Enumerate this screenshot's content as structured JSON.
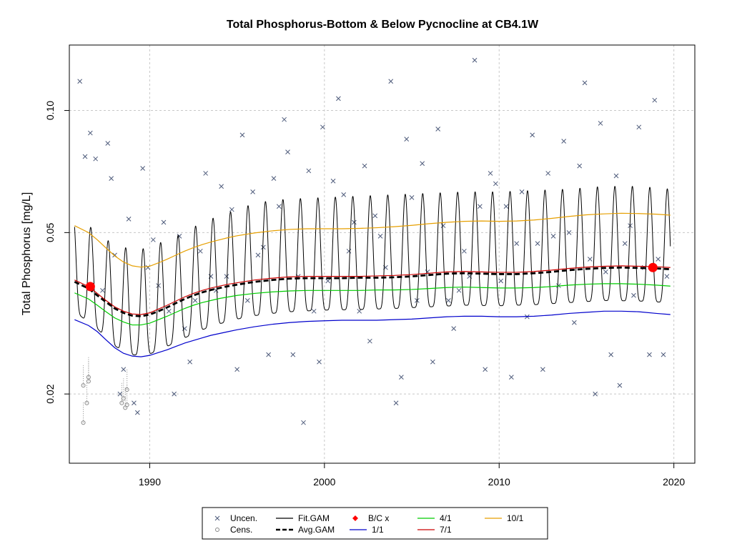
{
  "chart_data": {
    "type": "line",
    "title": "Total Phosphorus-Bottom & Below Pycnocline at CB4.1W",
    "xlabel": "",
    "ylabel": "Total Phosphorus [mg/L]",
    "y_scale": "log",
    "xlim": [
      1985.4,
      2021.2
    ],
    "ylim": [
      0.0135,
      0.145
    ],
    "x_ticks": [
      1990,
      2000,
      2010,
      2020
    ],
    "x_tick_labels": [
      "1990",
      "2000",
      "2010",
      "2020"
    ],
    "y_ticks": [
      0.02,
      0.05,
      0.1
    ],
    "y_tick_labels": [
      "0.02",
      "0.05",
      "0.10"
    ],
    "grid": true,
    "legend_position": "bottom",
    "legend": [
      {
        "label": "Uncen.",
        "symbol": "x"
      },
      {
        "label": "Cens.",
        "symbol": "circle"
      },
      {
        "label": "Fit.GAM",
        "symbol": "line"
      },
      {
        "label": "Avg.GAM",
        "symbol": "dashed"
      },
      {
        "label": "B/C x",
        "symbol": "diamond"
      },
      {
        "label": "1/1",
        "symbol": "line"
      },
      {
        "label": "4/1",
        "symbol": "line"
      },
      {
        "label": "7/1",
        "symbol": "line"
      },
      {
        "label": "10/1",
        "symbol": "line"
      }
    ],
    "series_colors": {
      "points": "#4d5a7a",
      "fit_gam": "#000000",
      "avg_gam": "#000000",
      "bc": "#ff0000",
      "jan1": "#0000cc",
      "apr1": "#00cc00",
      "jul1": "#cc0000",
      "oct1": "#e69f00"
    },
    "series": [
      {
        "name": "1/1",
        "key": "jan1",
        "x": [
          1985.7,
          1986.5,
          1987.0,
          1987.5,
          1988.0,
          1988.5,
          1989.0,
          1989.5,
          1990.0,
          1990.5,
          1991.0,
          1991.5,
          1992.0,
          1992.5,
          1993.0,
          1993.5,
          1994.0,
          1994.5,
          1995.0,
          1996.0,
          1997.0,
          1998.0,
          1999.0,
          2000.0,
          2001.0,
          2002.0,
          2003.0,
          2004.0,
          2005.0,
          2006.0,
          2007.0,
          2008.0,
          2009.0,
          2010.0,
          2011.0,
          2012.0,
          2013.0,
          2014.0,
          2015.0,
          2016.0,
          2017.0,
          2018.0,
          2019.0,
          2019.8
        ],
        "y": [
          0.0305,
          0.0295,
          0.0285,
          0.0272,
          0.026,
          0.0252,
          0.0248,
          0.0247,
          0.0249,
          0.0253,
          0.0257,
          0.0262,
          0.0267,
          0.0271,
          0.0275,
          0.0279,
          0.0282,
          0.0285,
          0.0288,
          0.0293,
          0.0297,
          0.03,
          0.0302,
          0.0303,
          0.0304,
          0.0304,
          0.0304,
          0.0305,
          0.0306,
          0.0308,
          0.031,
          0.0311,
          0.0311,
          0.031,
          0.031,
          0.0311,
          0.0313,
          0.0316,
          0.0318,
          0.032,
          0.032,
          0.0319,
          0.0316,
          0.0314
        ]
      },
      {
        "name": "4/1",
        "key": "apr1",
        "x": [
          1985.7,
          1986.5,
          1987.0,
          1987.5,
          1988.0,
          1988.5,
          1989.0,
          1989.5,
          1990.0,
          1990.5,
          1991.0,
          1991.5,
          1992.0,
          1992.5,
          1993.0,
          1993.5,
          1994.0,
          1994.5,
          1995.0,
          1996.0,
          1997.0,
          1998.0,
          1999.0,
          2000.0,
          2001.0,
          2002.0,
          2003.0,
          2004.0,
          2005.0,
          2006.0,
          2007.0,
          2008.0,
          2009.0,
          2010.0,
          2011.0,
          2012.0,
          2013.0,
          2014.0,
          2015.0,
          2016.0,
          2017.0,
          2018.0,
          2019.0,
          2019.8
        ],
        "y": [
          0.0355,
          0.0343,
          0.0331,
          0.0319,
          0.0308,
          0.0301,
          0.0296,
          0.0296,
          0.0299,
          0.0305,
          0.0311,
          0.0318,
          0.0325,
          0.0331,
          0.0336,
          0.034,
          0.0344,
          0.0347,
          0.035,
          0.0354,
          0.0357,
          0.0359,
          0.036,
          0.036,
          0.036,
          0.036,
          0.0361,
          0.0361,
          0.0362,
          0.0364,
          0.0366,
          0.0367,
          0.0366,
          0.0365,
          0.0365,
          0.0366,
          0.0368,
          0.0371,
          0.0373,
          0.0374,
          0.0374,
          0.0373,
          0.0371,
          0.0369
        ]
      },
      {
        "name": "7/1",
        "key": "jul1",
        "x": [
          1985.7,
          1986.5,
          1987.0,
          1987.5,
          1988.0,
          1988.5,
          1989.0,
          1989.5,
          1990.0,
          1990.5,
          1991.0,
          1991.5,
          1992.0,
          1992.5,
          1993.0,
          1993.5,
          1994.0,
          1994.5,
          1995.0,
          1996.0,
          1997.0,
          1998.0,
          1999.0,
          2000.0,
          2001.0,
          2002.0,
          2003.0,
          2004.0,
          2005.0,
          2006.0,
          2007.0,
          2008.0,
          2009.0,
          2010.0,
          2011.0,
          2012.0,
          2013.0,
          2014.0,
          2015.0,
          2016.0,
          2017.0,
          2018.0,
          2019.0,
          2019.8
        ],
        "y": [
          0.0382,
          0.0368,
          0.0354,
          0.034,
          0.0328,
          0.032,
          0.0315,
          0.0314,
          0.0317,
          0.0324,
          0.0331,
          0.0339,
          0.0347,
          0.0354,
          0.036,
          0.0365,
          0.0369,
          0.0373,
          0.0376,
          0.0382,
          0.0386,
          0.0389,
          0.039,
          0.039,
          0.039,
          0.039,
          0.0391,
          0.0392,
          0.0394,
          0.0397,
          0.04,
          0.0401,
          0.04,
          0.0399,
          0.0399,
          0.0401,
          0.0404,
          0.0408,
          0.0411,
          0.0413,
          0.0414,
          0.0413,
          0.0412,
          0.041
        ]
      },
      {
        "name": "10/1",
        "key": "oct1",
        "x": [
          1985.7,
          1986.5,
          1987.0,
          1987.5,
          1988.0,
          1988.5,
          1989.0,
          1989.5,
          1990.0,
          1990.5,
          1991.0,
          1991.5,
          1992.0,
          1992.5,
          1993.0,
          1993.5,
          1994.0,
          1994.5,
          1995.0,
          1996.0,
          1997.0,
          1998.0,
          1999.0,
          2000.0,
          2001.0,
          2002.0,
          2003.0,
          2004.0,
          2005.0,
          2006.0,
          2007.0,
          2008.0,
          2009.0,
          2010.0,
          2011.0,
          2012.0,
          2013.0,
          2014.0,
          2015.0,
          2016.0,
          2017.0,
          2018.0,
          2019.0,
          2019.8
        ],
        "y": [
          0.052,
          0.05,
          0.048,
          0.0458,
          0.0438,
          0.0423,
          0.0414,
          0.0411,
          0.0413,
          0.0421,
          0.043,
          0.044,
          0.045,
          0.0459,
          0.0467,
          0.0474,
          0.048,
          0.0486,
          0.0491,
          0.0499,
          0.0505,
          0.0509,
          0.0511,
          0.0511,
          0.0511,
          0.0512,
          0.0514,
          0.0517,
          0.0521,
          0.0526,
          0.053,
          0.0533,
          0.0534,
          0.0533,
          0.0534,
          0.0537,
          0.0542,
          0.0548,
          0.0553,
          0.0556,
          0.0558,
          0.0557,
          0.0555,
          0.0552
        ]
      },
      {
        "name": "Fit.GAM",
        "key": "fit_gam",
        "x_start": 1985.7,
        "x_end": 2019.8,
        "cycle": "annual",
        "peak_month": 8.5,
        "x": [
          1985.7,
          1986.5,
          1987.0,
          1987.5,
          1988.0,
          1988.5,
          1989.0,
          1989.5,
          1990.0,
          1991.0,
          1992.0,
          1993.0,
          1994.0,
          1995.0,
          1996.0,
          1997.0,
          1998.0,
          2000.0,
          2002.0,
          2004.0,
          2006.0,
          2008.0,
          2010.0,
          2012.0,
          2014.0,
          2016.0,
          2018.0,
          2019.8
        ],
        "y_low": [
          0.032,
          0.03,
          0.029,
          0.0275,
          0.0263,
          0.0255,
          0.025,
          0.0249,
          0.0251,
          0.0262,
          0.0275,
          0.0288,
          0.0298,
          0.0306,
          0.0312,
          0.0316,
          0.0319,
          0.0322,
          0.0323,
          0.0325,
          0.0328,
          0.0331,
          0.033,
          0.0332,
          0.0336,
          0.034,
          0.0339,
          0.0336
        ],
        "y_high": [
          0.055,
          0.052,
          0.05,
          0.048,
          0.047,
          0.046,
          0.0455,
          0.0455,
          0.046,
          0.048,
          0.05,
          0.053,
          0.055,
          0.057,
          0.059,
          0.06,
          0.0605,
          0.061,
          0.0615,
          0.062,
          0.0625,
          0.063,
          0.063,
          0.0635,
          0.064,
          0.065,
          0.065,
          0.064
        ]
      },
      {
        "name": "Avg.GAM",
        "key": "avg_gam",
        "x": [
          1985.7,
          1986.5,
          1987.0,
          1987.5,
          1988.0,
          1988.5,
          1989.0,
          1989.5,
          1990.0,
          1990.5,
          1991.0,
          1991.5,
          1992.0,
          1992.5,
          1993.0,
          1993.5,
          1994.0,
          1994.5,
          1995.0,
          1996.0,
          1997.0,
          1998.0,
          1999.0,
          2000.0,
          2001.0,
          2002.0,
          2003.0,
          2004.0,
          2005.0,
          2006.0,
          2007.0,
          2008.0,
          2009.0,
          2010.0,
          2011.0,
          2012.0,
          2013.0,
          2014.0,
          2015.0,
          2016.0,
          2017.0,
          2018.0,
          2019.0,
          2019.8
        ],
        "y": [
          0.0378,
          0.0364,
          0.035,
          0.0337,
          0.0325,
          0.0317,
          0.0312,
          0.0311,
          0.0314,
          0.032,
          0.0327,
          0.0335,
          0.0343,
          0.035,
          0.0356,
          0.0361,
          0.0365,
          0.0369,
          0.0372,
          0.0378,
          0.0382,
          0.0385,
          0.0386,
          0.0386,
          0.0386,
          0.0387,
          0.0387,
          0.0388,
          0.039,
          0.0393,
          0.0396,
          0.0397,
          0.0396,
          0.0395,
          0.0395,
          0.0397,
          0.04,
          0.0404,
          0.0407,
          0.0409,
          0.041,
          0.0409,
          0.0408,
          0.0406
        ]
      },
      {
        "name": "B/C x",
        "key": "bc",
        "x": [
          1986.6,
          2018.8
        ],
        "y": [
          0.0368,
          0.041
        ]
      }
    ],
    "uncensored_points": [
      [
        1986.0,
        0.118
      ],
      [
        1986.3,
        0.077
      ],
      [
        1986.6,
        0.088
      ],
      [
        1986.9,
        0.076
      ],
      [
        1987.3,
        0.036
      ],
      [
        1987.6,
        0.083
      ],
      [
        1987.8,
        0.068
      ],
      [
        1988.0,
        0.044
      ],
      [
        1988.3,
        0.02
      ],
      [
        1988.5,
        0.023
      ],
      [
        1988.8,
        0.054
      ],
      [
        1989.1,
        0.019
      ],
      [
        1989.3,
        0.018
      ],
      [
        1989.6,
        0.072
      ],
      [
        1989.9,
        0.041
      ],
      [
        1990.2,
        0.048
      ],
      [
        1990.5,
        0.037
      ],
      [
        1990.8,
        0.053
      ],
      [
        1991.1,
        0.032
      ],
      [
        1991.4,
        0.02
      ],
      [
        1991.7,
        0.049
      ],
      [
        1992.0,
        0.029
      ],
      [
        1992.3,
        0.024
      ],
      [
        1992.6,
        0.034
      ],
      [
        1992.9,
        0.045
      ],
      [
        1993.2,
        0.07
      ],
      [
        1993.5,
        0.039
      ],
      [
        1993.8,
        0.036
      ],
      [
        1994.1,
        0.065
      ],
      [
        1994.4,
        0.039
      ],
      [
        1994.7,
        0.057
      ],
      [
        1995.0,
        0.023
      ],
      [
        1995.3,
        0.087
      ],
      [
        1995.6,
        0.034
      ],
      [
        1995.9,
        0.063
      ],
      [
        1996.2,
        0.044
      ],
      [
        1996.5,
        0.046
      ],
      [
        1996.8,
        0.025
      ],
      [
        1997.1,
        0.068
      ],
      [
        1997.4,
        0.058
      ],
      [
        1997.7,
        0.095
      ],
      [
        1997.9,
        0.079
      ],
      [
        1998.2,
        0.025
      ],
      [
        1998.5,
        0.039
      ],
      [
        1998.8,
        0.017
      ],
      [
        1999.1,
        0.071
      ],
      [
        1999.4,
        0.032
      ],
      [
        1999.7,
        0.024
      ],
      [
        1999.9,
        0.091
      ],
      [
        2000.2,
        0.038
      ],
      [
        2000.5,
        0.067
      ],
      [
        2000.8,
        0.107
      ],
      [
        2001.1,
        0.062
      ],
      [
        2001.4,
        0.045
      ],
      [
        2001.7,
        0.053
      ],
      [
        2002.0,
        0.032
      ],
      [
        2002.3,
        0.073
      ],
      [
        2002.6,
        0.027
      ],
      [
        2002.9,
        0.055
      ],
      [
        2003.2,
        0.049
      ],
      [
        2003.5,
        0.041
      ],
      [
        2003.8,
        0.118
      ],
      [
        2004.1,
        0.019
      ],
      [
        2004.4,
        0.022
      ],
      [
        2004.7,
        0.085
      ],
      [
        2005.0,
        0.061
      ],
      [
        2005.3,
        0.034
      ],
      [
        2005.6,
        0.074
      ],
      [
        2005.9,
        0.04
      ],
      [
        2006.2,
        0.024
      ],
      [
        2006.5,
        0.09
      ],
      [
        2006.8,
        0.052
      ],
      [
        2007.1,
        0.034
      ],
      [
        2007.4,
        0.029
      ],
      [
        2007.7,
        0.036
      ],
      [
        2008.0,
        0.045
      ],
      [
        2008.3,
        0.039
      ],
      [
        2008.6,
        0.133
      ],
      [
        2008.9,
        0.058
      ],
      [
        2009.2,
        0.023
      ],
      [
        2009.5,
        0.07
      ],
      [
        2009.8,
        0.066
      ],
      [
        2010.1,
        0.038
      ],
      [
        2010.4,
        0.058
      ],
      [
        2010.7,
        0.022
      ],
      [
        2011.0,
        0.047
      ],
      [
        2011.3,
        0.063
      ],
      [
        2011.6,
        0.031
      ],
      [
        2011.9,
        0.087
      ],
      [
        2012.2,
        0.047
      ],
      [
        2012.5,
        0.023
      ],
      [
        2012.8,
        0.07
      ],
      [
        2013.1,
        0.049
      ],
      [
        2013.4,
        0.037
      ],
      [
        2013.7,
        0.084
      ],
      [
        2014.0,
        0.05
      ],
      [
        2014.3,
        0.03
      ],
      [
        2014.6,
        0.073
      ],
      [
        2014.9,
        0.117
      ],
      [
        2015.2,
        0.043
      ],
      [
        2015.5,
        0.02
      ],
      [
        2015.8,
        0.093
      ],
      [
        2016.1,
        0.04
      ],
      [
        2016.4,
        0.025
      ],
      [
        2016.7,
        0.069
      ],
      [
        2016.9,
        0.021
      ],
      [
        2017.2,
        0.047
      ],
      [
        2017.5,
        0.052
      ],
      [
        2017.7,
        0.035
      ],
      [
        2018.0,
        0.091
      ],
      [
        2018.3,
        0.041
      ],
      [
        2018.6,
        0.025
      ],
      [
        2018.9,
        0.106
      ],
      [
        2019.1,
        0.043
      ],
      [
        2019.4,
        0.025
      ],
      [
        2019.6,
        0.039
      ]
    ],
    "censored_points": [
      [
        1986.2,
        0.017
      ],
      [
        1986.2,
        0.021
      ],
      [
        1986.4,
        0.019
      ],
      [
        1986.5,
        0.022
      ],
      [
        1986.5,
        0.0215
      ],
      [
        1988.4,
        0.019
      ],
      [
        1988.5,
        0.0195
      ],
      [
        1988.6,
        0.0185
      ],
      [
        1988.7,
        0.0188
      ],
      [
        1988.7,
        0.0205
      ]
    ]
  }
}
